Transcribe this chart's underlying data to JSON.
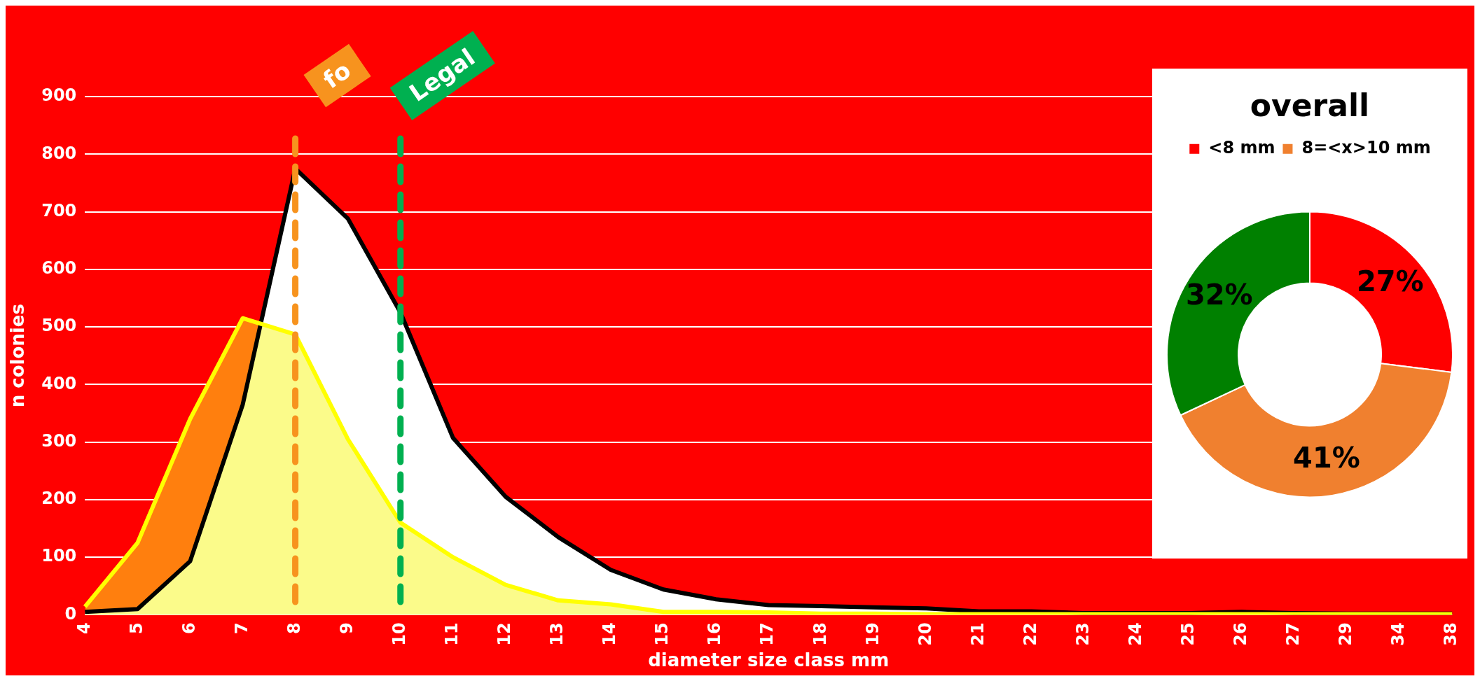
{
  "chart_data": [
    {
      "type": "area",
      "xlabel": "diameter size class mm",
      "ylabel": "n colonies",
      "categories": [
        "4",
        "5",
        "6",
        "7",
        "8",
        "9",
        "10",
        "11",
        "12",
        "13",
        "14",
        "15",
        "16",
        "17",
        "18",
        "19",
        "20",
        "21",
        "22",
        "23",
        "24",
        "25",
        "26",
        "27",
        "29",
        "34",
        "38"
      ],
      "series": [
        {
          "color": "#000000",
          "values": [
            5,
            10,
            93,
            365,
            775,
            688,
            525,
            307,
            205,
            135,
            78,
            44,
            27,
            17,
            15,
            13,
            11,
            6,
            6,
            3,
            3,
            3,
            5,
            3,
            2,
            2,
            2
          ]
        },
        {
          "type": "line",
          "color": "#ffff00",
          "values": [
            14,
            125,
            340,
            515,
            487,
            305,
            160,
            100,
            52,
            25,
            18,
            5,
            5,
            4,
            2,
            2,
            1,
            1,
            1,
            1,
            1,
            1,
            1,
            1,
            1,
            1,
            1
          ]
        }
      ],
      "ylim": [
        0,
        900
      ],
      "yticks": [
        0,
        100,
        200,
        300,
        400,
        500,
        600,
        700,
        800,
        900
      ],
      "grid": "y",
      "legend": false,
      "ref_lines": [
        {
          "axis": "x",
          "value": "8",
          "label": "fo",
          "color": "#f7931e",
          "line_style": "dashed"
        },
        {
          "axis": "x",
          "value": "10",
          "label": "Legal",
          "color": "#00b050",
          "line_style": "dashed"
        }
      ]
    },
    {
      "type": "donut",
      "title": "overall",
      "categories": [
        "<8 mm",
        "8=<x>10 mm",
        null
      ],
      "values": [
        27,
        41,
        32
      ],
      "colors": [
        "#ff0000",
        "#f0802f",
        "#008000"
      ],
      "value_labels": [
        "27%",
        "41%",
        "32%"
      ],
      "legend": "top"
    }
  ]
}
